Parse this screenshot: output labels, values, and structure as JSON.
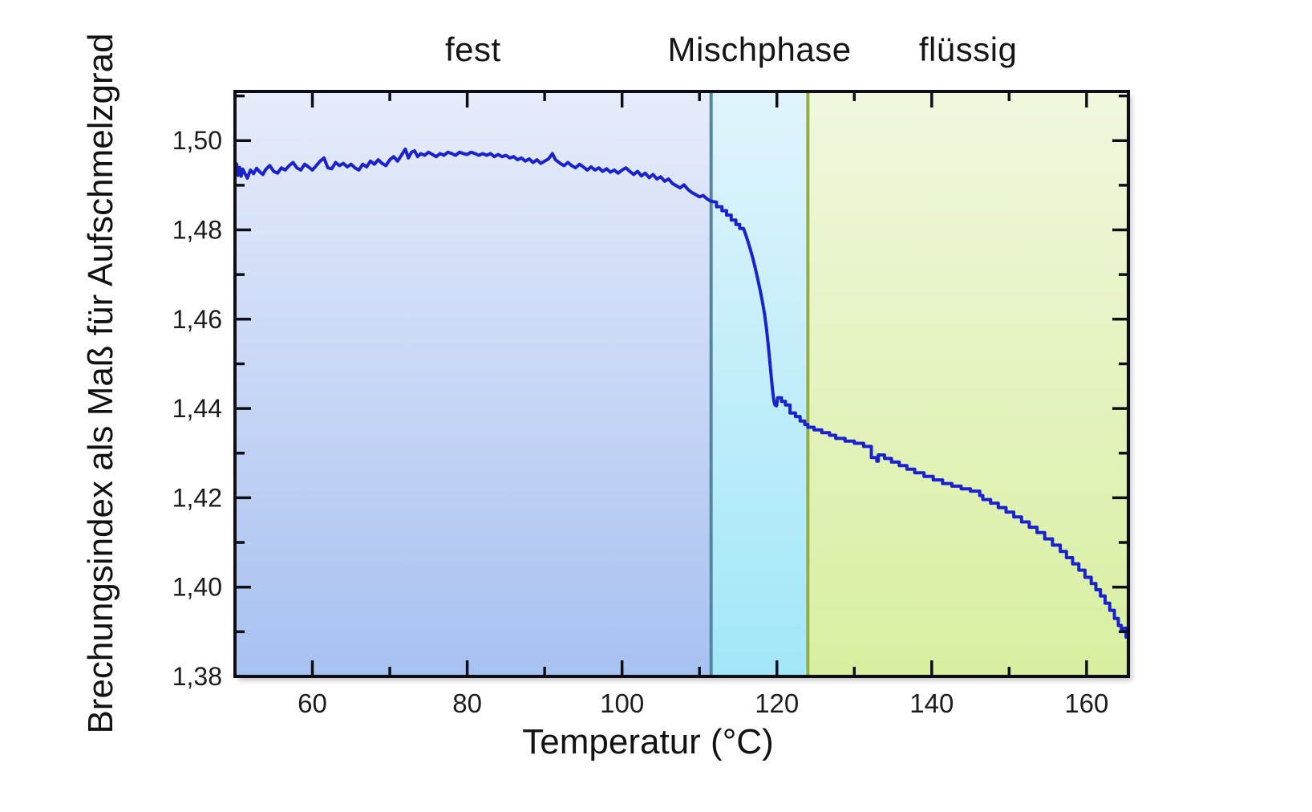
{
  "chart_data": {
    "type": "line",
    "title": "",
    "xlabel": "Temperatur (°C)",
    "ylabel": "Brechungsindex als Maß für Aufschmelzgrad",
    "x_domain": [
      50,
      165.4
    ],
    "y_domain": [
      1.38,
      1.511
    ],
    "grid": false,
    "legend": "none",
    "regions": [
      {
        "label": "fest",
        "from": 50,
        "to": 111.5,
        "fill_top": "#e7ecfa",
        "fill_bottom": "#a7c1f1"
      },
      {
        "label": "Mischphase",
        "from": 111.5,
        "to": 124.0,
        "fill_top": "#e0f4fc",
        "fill_bottom": "#a2e7f8"
      },
      {
        "label": "flüssig",
        "from": 124.0,
        "to": 165.4,
        "fill_top": "#f0f7de",
        "fill_bottom": "#d8efa0"
      }
    ],
    "dividers": [
      {
        "x": 111.5,
        "color": "#55869f"
      },
      {
        "x": 124.0,
        "color": "#93ad45"
      }
    ],
    "x_ticks": {
      "major": [
        {
          "v": 60,
          "label": "60"
        },
        {
          "v": 80,
          "label": "80"
        },
        {
          "v": 100,
          "label": "100"
        },
        {
          "v": 120,
          "label": "120"
        },
        {
          "v": 140,
          "label": "140"
        },
        {
          "v": 160,
          "label": "160"
        }
      ],
      "minor": [
        70,
        90,
        110,
        130,
        150
      ]
    },
    "y_ticks": {
      "major": [
        {
          "v": 1.38,
          "label": "1,38"
        },
        {
          "v": 1.4,
          "label": "1,40"
        },
        {
          "v": 1.42,
          "label": "1,42"
        },
        {
          "v": 1.44,
          "label": "1,44"
        },
        {
          "v": 1.46,
          "label": "1,46"
        },
        {
          "v": 1.48,
          "label": "1,48"
        },
        {
          "v": 1.5,
          "label": "1,50"
        }
      ],
      "minor": [
        1.39,
        1.41,
        1.43,
        1.45,
        1.47,
        1.49,
        1.51
      ]
    },
    "frame_color": "#0e0e16",
    "series": [
      {
        "name": "Brechungsindex",
        "color": "#1a22cd",
        "width": 4,
        "points": [
          [
            50.0,
            1.4935
          ],
          [
            50.2,
            1.4948
          ],
          [
            50.4,
            1.4922
          ],
          [
            50.6,
            1.494
          ],
          [
            50.8,
            1.492
          ],
          [
            51.0,
            1.4936
          ],
          [
            51.3,
            1.4926
          ],
          [
            51.6,
            1.4916
          ],
          [
            52.0,
            1.4934
          ],
          [
            52.4,
            1.4926
          ],
          [
            52.8,
            1.4938
          ],
          [
            53.2,
            1.493
          ],
          [
            53.6,
            1.4924
          ],
          [
            54.0,
            1.4936
          ],
          [
            54.5,
            1.4944
          ],
          [
            55.0,
            1.4931
          ],
          [
            55.5,
            1.4927
          ],
          [
            56.0,
            1.4939
          ],
          [
            56.5,
            1.4934
          ],
          [
            57.0,
            1.4944
          ],
          [
            57.5,
            1.4951
          ],
          [
            58.0,
            1.4939
          ],
          [
            58.5,
            1.4934
          ],
          [
            59.0,
            1.4947
          ],
          [
            59.5,
            1.4941
          ],
          [
            60.0,
            1.4934
          ],
          [
            60.5,
            1.4944
          ],
          [
            61.0,
            1.4954
          ],
          [
            61.5,
            1.4961
          ],
          [
            62.0,
            1.4939
          ],
          [
            62.5,
            1.4937
          ],
          [
            63.0,
            1.4951
          ],
          [
            63.5,
            1.4944
          ],
          [
            64.0,
            1.4949
          ],
          [
            64.5,
            1.4941
          ],
          [
            65.0,
            1.4947
          ],
          [
            65.5,
            1.4939
          ],
          [
            66.0,
            1.4934
          ],
          [
            66.5,
            1.4947
          ],
          [
            67.0,
            1.4941
          ],
          [
            67.5,
            1.4954
          ],
          [
            68.0,
            1.4947
          ],
          [
            68.5,
            1.4957
          ],
          [
            69.0,
            1.4949
          ],
          [
            69.5,
            1.4944
          ],
          [
            70.0,
            1.4957
          ],
          [
            70.5,
            1.4964
          ],
          [
            71.0,
            1.4954
          ],
          [
            71.5,
            1.4967
          ],
          [
            72.0,
            1.4981
          ],
          [
            72.4,
            1.4961
          ],
          [
            72.8,
            1.4974
          ],
          [
            73.2,
            1.4977
          ],
          [
            73.6,
            1.4964
          ],
          [
            74.0,
            1.4971
          ],
          [
            74.5,
            1.4967
          ],
          [
            75.0,
            1.4974
          ],
          [
            75.5,
            1.4969
          ],
          [
            76.0,
            1.4964
          ],
          [
            76.5,
            1.4971
          ],
          [
            77.0,
            1.4967
          ],
          [
            77.5,
            1.4974
          ],
          [
            78.0,
            1.4971
          ],
          [
            78.5,
            1.4967
          ],
          [
            79.0,
            1.4974
          ],
          [
            79.5,
            1.4971
          ],
          [
            80.0,
            1.4969
          ],
          [
            80.5,
            1.4974
          ],
          [
            81.0,
            1.4971
          ],
          [
            81.5,
            1.4967
          ],
          [
            82.0,
            1.4971
          ],
          [
            82.5,
            1.4967
          ],
          [
            83.0,
            1.4971
          ],
          [
            83.5,
            1.4964
          ],
          [
            84.0,
            1.4969
          ],
          [
            84.5,
            1.4964
          ],
          [
            85.0,
            1.4967
          ],
          [
            85.5,
            1.4961
          ],
          [
            86.0,
            1.4964
          ],
          [
            86.5,
            1.4957
          ],
          [
            87.0,
            1.4961
          ],
          [
            87.5,
            1.4954
          ],
          [
            88.0,
            1.4959
          ],
          [
            88.5,
            1.4951
          ],
          [
            89.0,
            1.4957
          ],
          [
            89.5,
            1.4949
          ],
          [
            90.0,
            1.4954
          ],
          [
            90.5,
            1.4959
          ],
          [
            91.0,
            1.4971
          ],
          [
            91.4,
            1.4957
          ],
          [
            92.0,
            1.4949
          ],
          [
            92.5,
            1.4944
          ],
          [
            93.0,
            1.4951
          ],
          [
            93.5,
            1.4944
          ],
          [
            94.0,
            1.4939
          ],
          [
            94.5,
            1.4947
          ],
          [
            95.0,
            1.4941
          ],
          [
            95.5,
            1.4934
          ],
          [
            96.0,
            1.4941
          ],
          [
            96.5,
            1.4934
          ],
          [
            97.0,
            1.4939
          ],
          [
            97.5,
            1.4931
          ],
          [
            98.0,
            1.4937
          ],
          [
            98.5,
            1.4929
          ],
          [
            99.0,
            1.4934
          ],
          [
            99.5,
            1.4927
          ],
          [
            100.0,
            1.4934
          ],
          [
            100.5,
            1.4939
          ],
          [
            101.0,
            1.4931
          ],
          [
            101.5,
            1.4924
          ],
          [
            102.0,
            1.4931
          ],
          [
            102.5,
            1.4921
          ],
          [
            103.0,
            1.4927
          ],
          [
            103.5,
            1.4917
          ],
          [
            104.0,
            1.4924
          ],
          [
            104.5,
            1.4914
          ],
          [
            105.0,
            1.4919
          ],
          [
            105.5,
            1.4909
          ],
          [
            106.0,
            1.4914
          ],
          [
            106.5,
            1.4904
          ],
          [
            107.0,
            1.4899
          ],
          [
            107.5,
            1.4894
          ],
          [
            108.0,
            1.4901
          ],
          [
            108.5,
            1.4891
          ],
          [
            109.0,
            1.4884
          ],
          [
            109.5,
            1.4879
          ],
          [
            110.0,
            1.4874
          ],
          [
            110.5,
            1.4877
          ],
          [
            111.0,
            1.4869
          ],
          [
            111.5,
            1.4864
          ],
          [
            112.2,
            1.4862
          ],
          [
            112.2,
            1.4852
          ],
          [
            112.9,
            1.4852
          ],
          [
            112.9,
            1.4843
          ],
          [
            113.5,
            1.4843
          ],
          [
            113.5,
            1.4833
          ],
          [
            114.1,
            1.4833
          ],
          [
            114.1,
            1.4822
          ],
          [
            114.7,
            1.4822
          ],
          [
            114.7,
            1.4812
          ],
          [
            115.2,
            1.4812
          ],
          [
            115.2,
            1.4803
          ],
          [
            115.7,
            1.4803
          ],
          [
            116.0,
            1.4788
          ],
          [
            116.3,
            1.4772
          ],
          [
            116.6,
            1.4755
          ],
          [
            116.9,
            1.4736
          ],
          [
            117.2,
            1.4715
          ],
          [
            117.5,
            1.4692
          ],
          [
            117.8,
            1.4668
          ],
          [
            118.1,
            1.4642
          ],
          [
            118.4,
            1.4612
          ],
          [
            118.65,
            1.458
          ],
          [
            118.85,
            1.4548
          ],
          [
            119.05,
            1.4512
          ],
          [
            119.25,
            1.4475
          ],
          [
            119.45,
            1.444
          ],
          [
            119.6,
            1.4418
          ],
          [
            119.75,
            1.4408
          ],
          [
            119.95,
            1.4406
          ],
          [
            120.1,
            1.4424
          ],
          [
            120.6,
            1.4424
          ],
          [
            120.6,
            1.4416
          ],
          [
            121.1,
            1.4416
          ],
          [
            121.1,
            1.4408
          ],
          [
            121.7,
            1.4408
          ],
          [
            121.7,
            1.439
          ],
          [
            122.4,
            1.439
          ],
          [
            122.4,
            1.4382
          ],
          [
            123.0,
            1.4382
          ],
          [
            123.0,
            1.4372
          ],
          [
            123.6,
            1.4372
          ],
          [
            123.6,
            1.4364
          ],
          [
            124.0,
            1.4364
          ],
          [
            124.0,
            1.4358
          ],
          [
            124.8,
            1.4358
          ],
          [
            124.8,
            1.4352
          ],
          [
            125.8,
            1.4352
          ],
          [
            125.8,
            1.4346
          ],
          [
            126.8,
            1.4346
          ],
          [
            126.8,
            1.434
          ],
          [
            127.6,
            1.434
          ],
          [
            127.6,
            1.4333
          ],
          [
            128.8,
            1.4333
          ],
          [
            128.8,
            1.4327
          ],
          [
            130.0,
            1.4327
          ],
          [
            130.0,
            1.4322
          ],
          [
            131.2,
            1.4322
          ],
          [
            131.2,
            1.4315
          ],
          [
            132.2,
            1.4315
          ],
          [
            132.2,
            1.429
          ],
          [
            132.9,
            1.429
          ],
          [
            132.9,
            1.4282
          ],
          [
            133.1,
            1.4282
          ],
          [
            133.1,
            1.4296
          ],
          [
            133.9,
            1.4296
          ],
          [
            133.9,
            1.4288
          ],
          [
            134.8,
            1.4288
          ],
          [
            134.8,
            1.428
          ],
          [
            135.8,
            1.428
          ],
          [
            135.8,
            1.4272
          ],
          [
            136.8,
            1.4272
          ],
          [
            136.8,
            1.4264
          ],
          [
            137.8,
            1.4264
          ],
          [
            137.8,
            1.4256
          ],
          [
            139.0,
            1.4256
          ],
          [
            139.0,
            1.4248
          ],
          [
            140.2,
            1.4248
          ],
          [
            140.2,
            1.424
          ],
          [
            141.4,
            1.424
          ],
          [
            141.4,
            1.4232
          ],
          [
            142.6,
            1.4232
          ],
          [
            142.6,
            1.4226
          ],
          [
            143.8,
            1.4226
          ],
          [
            143.8,
            1.422
          ],
          [
            145.0,
            1.422
          ],
          [
            145.0,
            1.4215
          ],
          [
            146.2,
            1.4215
          ],
          [
            146.2,
            1.4205
          ],
          [
            146.6,
            1.4205
          ],
          [
            146.6,
            1.4196
          ],
          [
            147.6,
            1.4196
          ],
          [
            147.6,
            1.4188
          ],
          [
            148.6,
            1.4188
          ],
          [
            148.6,
            1.4178
          ],
          [
            149.6,
            1.4178
          ],
          [
            149.6,
            1.4168
          ],
          [
            150.6,
            1.4168
          ],
          [
            150.6,
            1.4157
          ],
          [
            151.6,
            1.4157
          ],
          [
            151.6,
            1.4146
          ],
          [
            152.6,
            1.4146
          ],
          [
            152.6,
            1.4134
          ],
          [
            153.6,
            1.4134
          ],
          [
            153.6,
            1.4122
          ],
          [
            154.6,
            1.4122
          ],
          [
            154.6,
            1.4108
          ],
          [
            155.6,
            1.4108
          ],
          [
            155.6,
            1.4094
          ],
          [
            156.6,
            1.4094
          ],
          [
            156.6,
            1.408
          ],
          [
            157.4,
            1.408
          ],
          [
            157.4,
            1.4066
          ],
          [
            158.2,
            1.4066
          ],
          [
            158.2,
            1.4052
          ],
          [
            159.0,
            1.4052
          ],
          [
            159.0,
            1.4038
          ],
          [
            159.8,
            1.4038
          ],
          [
            159.8,
            1.4022
          ],
          [
            160.6,
            1.4022
          ],
          [
            160.6,
            1.4008
          ],
          [
            161.2,
            1.4008
          ],
          [
            161.2,
            1.3994
          ],
          [
            161.8,
            1.3994
          ],
          [
            161.8,
            1.398
          ],
          [
            162.4,
            1.398
          ],
          [
            162.4,
            1.3964
          ],
          [
            163.0,
            1.3964
          ],
          [
            163.0,
            1.3948
          ],
          [
            163.6,
            1.3948
          ],
          [
            163.6,
            1.393
          ],
          [
            164.1,
            1.393
          ],
          [
            164.1,
            1.3914
          ],
          [
            164.5,
            1.3914
          ],
          [
            164.5,
            1.3902
          ],
          [
            164.9,
            1.3902
          ],
          [
            164.9,
            1.3908
          ],
          [
            165.1,
            1.3908
          ],
          [
            165.1,
            1.3888
          ],
          [
            165.3,
            1.3888
          ]
        ]
      }
    ]
  }
}
